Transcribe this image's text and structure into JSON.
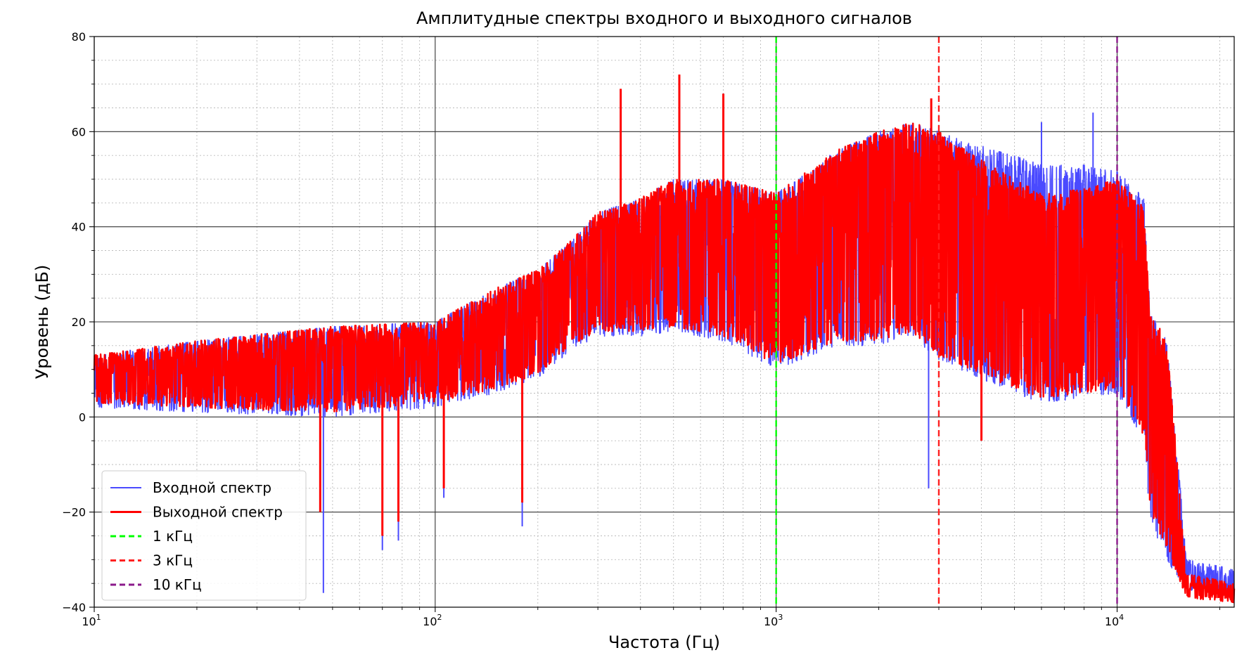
{
  "chart_data": {
    "type": "line",
    "title": "Амплитудные спектры входного и выходного сигналов",
    "xlabel": "Частота (Гц)",
    "ylabel": "Уровень (дБ)",
    "x_scale": "log",
    "xlim": [
      10,
      22050
    ],
    "ylim": [
      -40,
      80
    ],
    "x_ticks": [
      {
        "value": 10,
        "base": "10",
        "exp": "1"
      },
      {
        "value": 100,
        "base": "10",
        "exp": "2"
      },
      {
        "value": 1000,
        "base": "10",
        "exp": "3"
      },
      {
        "value": 10000,
        "base": "10",
        "exp": "4"
      }
    ],
    "y_ticks": [
      {
        "value": 80,
        "label": "80"
      },
      {
        "value": 60,
        "label": "60"
      },
      {
        "value": 40,
        "label": "40"
      },
      {
        "value": 20,
        "label": "20"
      },
      {
        "value": 0,
        "label": "0"
      },
      {
        "value": -20,
        "label": "−20"
      },
      {
        "value": -40,
        "label": "−40"
      }
    ],
    "grid": true,
    "legend_position": "lower-left",
    "series": [
      {
        "name": "Входной спектр",
        "color": "#4a4aff",
        "envelope_upper": [
          [
            10,
            13
          ],
          [
            20,
            16
          ],
          [
            50,
            19
          ],
          [
            100,
            20
          ],
          [
            150,
            27
          ],
          [
            200,
            31
          ],
          [
            250,
            37
          ],
          [
            300,
            43
          ],
          [
            400,
            46
          ],
          [
            500,
            50
          ],
          [
            700,
            50
          ],
          [
            1000,
            47
          ],
          [
            1500,
            56
          ],
          [
            2000,
            60
          ],
          [
            2500,
            62
          ],
          [
            3000,
            60
          ],
          [
            4000,
            57
          ],
          [
            5000,
            55
          ],
          [
            6000,
            53
          ],
          [
            8000,
            53
          ],
          [
            10000,
            52
          ],
          [
            12000,
            46
          ],
          [
            12500,
            22
          ],
          [
            14000,
            16
          ],
          [
            16000,
            -30
          ],
          [
            22050,
            -32
          ]
        ],
        "envelope_lower": [
          [
            10,
            2
          ],
          [
            20,
            1
          ],
          [
            50,
            0
          ],
          [
            100,
            2
          ],
          [
            150,
            5
          ],
          [
            200,
            8
          ],
          [
            250,
            14
          ],
          [
            300,
            17
          ],
          [
            400,
            17
          ],
          [
            500,
            18
          ],
          [
            700,
            16
          ],
          [
            1000,
            10
          ],
          [
            1500,
            15
          ],
          [
            2000,
            15
          ],
          [
            2500,
            17
          ],
          [
            3000,
            12
          ],
          [
            4000,
            8
          ],
          [
            5000,
            5
          ],
          [
            6000,
            3
          ],
          [
            8000,
            4
          ],
          [
            10000,
            5
          ],
          [
            12000,
            -5
          ],
          [
            12500,
            -22
          ],
          [
            14000,
            -30
          ],
          [
            16000,
            -37
          ],
          [
            22050,
            -38
          ]
        ],
        "peaks": [
          [
            47,
            -37
          ],
          [
            70,
            -28
          ],
          [
            78,
            -26
          ],
          [
            106,
            -17
          ],
          [
            180,
            -23
          ],
          [
            520,
            72
          ],
          [
            700,
            68
          ],
          [
            2800,
            -15
          ],
          [
            2850,
            66
          ],
          [
            8500,
            64
          ],
          [
            6000,
            62
          ],
          [
            12000,
            45
          ]
        ]
      },
      {
        "name": "Выходной спектр",
        "color": "#ff0000",
        "envelope_upper": [
          [
            10,
            13
          ],
          [
            20,
            16
          ],
          [
            50,
            19
          ],
          [
            100,
            20
          ],
          [
            150,
            27
          ],
          [
            200,
            31
          ],
          [
            250,
            37
          ],
          [
            300,
            43
          ],
          [
            400,
            46
          ],
          [
            500,
            50
          ],
          [
            700,
            50
          ],
          [
            1000,
            47
          ],
          [
            1500,
            56
          ],
          [
            2000,
            60
          ],
          [
            2500,
            62
          ],
          [
            3000,
            60
          ],
          [
            4000,
            54
          ],
          [
            5000,
            50
          ],
          [
            6000,
            47
          ],
          [
            8000,
            48
          ],
          [
            10000,
            50
          ],
          [
            12000,
            44
          ],
          [
            12500,
            22
          ],
          [
            14000,
            16
          ],
          [
            16000,
            -33
          ],
          [
            22050,
            -35
          ]
        ],
        "envelope_lower": [
          [
            10,
            3
          ],
          [
            20,
            2
          ],
          [
            50,
            1
          ],
          [
            100,
            3
          ],
          [
            150,
            6
          ],
          [
            200,
            9
          ],
          [
            250,
            15
          ],
          [
            300,
            18
          ],
          [
            400,
            18
          ],
          [
            500,
            19
          ],
          [
            700,
            17
          ],
          [
            1000,
            11
          ],
          [
            1500,
            16
          ],
          [
            2000,
            16
          ],
          [
            2500,
            18
          ],
          [
            3000,
            13
          ],
          [
            4000,
            9
          ],
          [
            5000,
            6
          ],
          [
            6000,
            4
          ],
          [
            8000,
            5
          ],
          [
            10000,
            6
          ],
          [
            12000,
            -4
          ],
          [
            12500,
            -20
          ],
          [
            14000,
            -28
          ],
          [
            16000,
            -38
          ],
          [
            22050,
            -39
          ]
        ],
        "peaks": [
          [
            46,
            -20
          ],
          [
            70,
            -25
          ],
          [
            78,
            -22
          ],
          [
            106,
            -15
          ],
          [
            180,
            -18
          ],
          [
            350,
            69
          ],
          [
            520,
            72
          ],
          [
            700,
            68
          ],
          [
            2850,
            67
          ],
          [
            4000,
            -5
          ]
        ]
      },
      {
        "name": "1 кГц",
        "color": "#00ff00",
        "style": "dashed",
        "x": 1000
      },
      {
        "name": "3 кГц",
        "color": "#ff2020",
        "style": "dashed",
        "x": 3000
      },
      {
        "name": "10 кГц",
        "color": "#8b1a8b",
        "style": "dashed",
        "x": 10000
      }
    ]
  }
}
